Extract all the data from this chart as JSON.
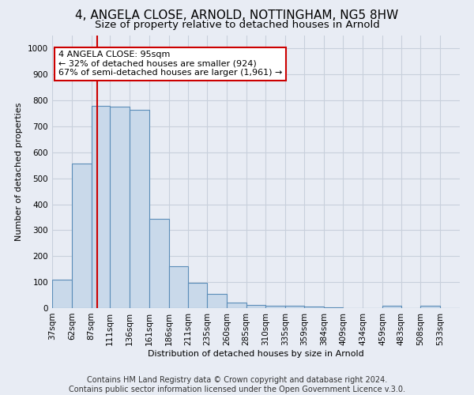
{
  "title1": "4, ANGELA CLOSE, ARNOLD, NOTTINGHAM, NG5 8HW",
  "title2": "Size of property relative to detached houses in Arnold",
  "xlabel": "Distribution of detached houses by size in Arnold",
  "ylabel": "Number of detached properties",
  "footer1": "Contains HM Land Registry data © Crown copyright and database right 2024.",
  "footer2": "Contains public sector information licensed under the Open Government Licence v.3.0.",
  "property_size": 95,
  "annotation_title": "4 ANGELA CLOSE: 95sqm",
  "annotation_line2": "← 32% of detached houses are smaller (924)",
  "annotation_line3": "67% of semi-detached houses are larger (1,961) →",
  "bin_labels": [
    "37sqm",
    "62sqm",
    "87sqm",
    "111sqm",
    "136sqm",
    "161sqm",
    "186sqm",
    "211sqm",
    "235sqm",
    "260sqm",
    "285sqm",
    "310sqm",
    "335sqm",
    "359sqm",
    "384sqm",
    "409sqm",
    "434sqm",
    "459sqm",
    "483sqm",
    "508sqm",
    "533sqm"
  ],
  "bin_edges": [
    37,
    62,
    87,
    111,
    136,
    161,
    186,
    211,
    235,
    260,
    285,
    310,
    335,
    359,
    384,
    409,
    434,
    459,
    483,
    508,
    533
  ],
  "bar_heights": [
    110,
    557,
    780,
    775,
    765,
    345,
    162,
    98,
    54,
    20,
    13,
    10,
    8,
    5,
    2,
    0,
    0,
    8,
    0,
    8,
    0
  ],
  "bar_color": "#c9d9ea",
  "bar_edge_color": "#5b8db8",
  "redline_color": "#cc0000",
  "annotation_box_color": "#cc0000",
  "grid_color": "#c8d0dc",
  "ylim": [
    0,
    1050
  ],
  "yticks": [
    0,
    100,
    200,
    300,
    400,
    500,
    600,
    700,
    800,
    900,
    1000
  ],
  "background_color": "#e8ecf4",
  "plot_bg_color": "#e8ecf4",
  "title1_fontsize": 11,
  "title2_fontsize": 9.5,
  "footer_fontsize": 7,
  "ann_fontsize": 8,
  "axis_label_fontsize": 8,
  "tick_fontsize": 7.5
}
